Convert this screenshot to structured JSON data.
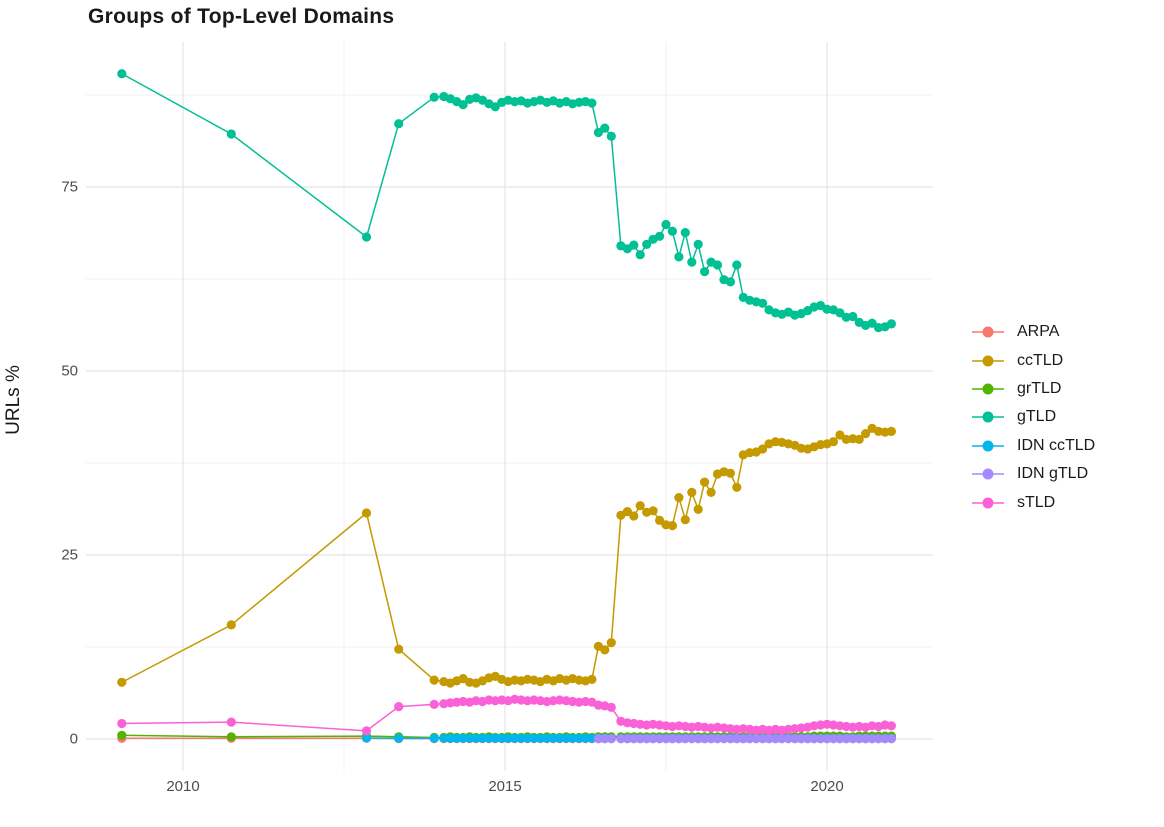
{
  "title": "Groups of Top-Level Domains",
  "axes": {
    "y": {
      "title": "URLs %",
      "tick_labels": [
        "0",
        "25",
        "50",
        "75"
      ]
    },
    "x": {
      "title": "",
      "tick_labels": [
        "2010",
        "2015",
        "2020"
      ]
    }
  },
  "legend": {
    "position": "right"
  },
  "chart_data": {
    "type": "line",
    "title": "Groups of Top-Level Domains",
    "xlabel": "",
    "ylabel": "URLs %",
    "xlim": [
      2008.45,
      2021.6
    ],
    "ylim": [
      -4.5,
      95
    ],
    "x_ticks": [
      2010,
      2015,
      2020
    ],
    "x_minor_ticks": [
      2012.5,
      2017.5
    ],
    "y_ticks": [
      0,
      25,
      50,
      75
    ],
    "y_minor_ticks": [
      12.5,
      37.5,
      62.5,
      87.5
    ],
    "grid": true,
    "legend_position": "right",
    "x": [
      2009.05,
      2010.75,
      2012.85,
      2013.35,
      2013.9,
      2014.05,
      2014.15,
      2014.25,
      2014.35,
      2014.45,
      2014.55,
      2014.65,
      2014.75,
      2014.85,
      2014.95,
      2015.05,
      2015.15,
      2015.25,
      2015.35,
      2015.45,
      2015.55,
      2015.65,
      2015.75,
      2015.85,
      2015.95,
      2016.05,
      2016.15,
      2016.25,
      2016.35,
      2016.45,
      2016.55,
      2016.65,
      2016.8,
      2016.9,
      2017.0,
      2017.1,
      2017.2,
      2017.3,
      2017.4,
      2017.5,
      2017.6,
      2017.7,
      2017.8,
      2017.9,
      2018.0,
      2018.1,
      2018.2,
      2018.3,
      2018.4,
      2018.5,
      2018.6,
      2018.7,
      2018.8,
      2018.9,
      2019.0,
      2019.1,
      2019.2,
      2019.3,
      2019.4,
      2019.5,
      2019.6,
      2019.7,
      2019.8,
      2019.9,
      2020.0,
      2020.1,
      2020.2,
      2020.3,
      2020.4,
      2020.5,
      2020.6,
      2020.7,
      2020.8,
      2020.9,
      2021.0
    ],
    "series": [
      {
        "name": "ARPA",
        "color": "#F8766D",
        "values": [
          0.1,
          0.1,
          0.1,
          0.05,
          0.05,
          0.05,
          0.05,
          0.05,
          0.05,
          0.05,
          0.05,
          0.05,
          0.05,
          0.05,
          0.05,
          0.05,
          0.05,
          0.05,
          0.05,
          0.05,
          0.05,
          0.05,
          0.05,
          0.05,
          0.05,
          0.05,
          0.05,
          0.05,
          0.05,
          0.05,
          0.05,
          0.05,
          0.05,
          0.05,
          0.05,
          0.05,
          0.05,
          0.05,
          0.05,
          0.05,
          0.05,
          0.05,
          0.05,
          0.05,
          0.05,
          0.05,
          0.05,
          0.05,
          0.05,
          0.05,
          0.05,
          0.05,
          0.05,
          0.05,
          0.05,
          0.05,
          0.05,
          0.05,
          0.05,
          0.05,
          0.05,
          0.05,
          0.05,
          0.05,
          0.05,
          0.05,
          0.05,
          0.05,
          0.05,
          0.05,
          0.05,
          0.05,
          0.05,
          0.05,
          0.05
        ]
      },
      {
        "name": "ccTLD",
        "color": "#C49A00",
        "values": [
          7.7,
          15.5,
          30.7,
          12.2,
          8.0,
          7.8,
          7.6,
          7.9,
          8.2,
          7.7,
          7.6,
          7.9,
          8.3,
          8.5,
          8.1,
          7.8,
          8.0,
          7.9,
          8.1,
          8.0,
          7.8,
          8.1,
          7.9,
          8.2,
          8.0,
          8.2,
          8.0,
          7.9,
          8.1,
          12.6,
          12.1,
          13.1,
          30.4,
          30.9,
          30.3,
          31.7,
          30.8,
          31.0,
          29.7,
          29.1,
          29.0,
          32.8,
          29.8,
          33.5,
          31.2,
          34.9,
          33.5,
          36.0,
          36.3,
          36.1,
          34.2,
          38.6,
          38.9,
          39.0,
          39.4,
          40.1,
          40.4,
          40.3,
          40.1,
          39.9,
          39.5,
          39.4,
          39.7,
          40.0,
          40.1,
          40.4,
          41.3,
          40.7,
          40.8,
          40.7,
          41.5,
          42.2,
          41.8,
          41.7,
          41.8
        ]
      },
      {
        "name": "grTLD",
        "color": "#53B400",
        "values": [
          0.5,
          0.3,
          0.4,
          0.3,
          0.2,
          0.2,
          0.3,
          0.2,
          0.2,
          0.3,
          0.2,
          0.2,
          0.3,
          0.2,
          0.2,
          0.3,
          0.2,
          0.2,
          0.3,
          0.2,
          0.2,
          0.3,
          0.2,
          0.2,
          0.3,
          0.2,
          0.2,
          0.3,
          0.2,
          0.3,
          0.3,
          0.3,
          0.3,
          0.3,
          0.3,
          0.3,
          0.3,
          0.3,
          0.3,
          0.3,
          0.3,
          0.3,
          0.3,
          0.3,
          0.3,
          0.3,
          0.3,
          0.3,
          0.3,
          0.3,
          0.3,
          0.3,
          0.3,
          0.3,
          0.3,
          0.3,
          0.3,
          0.3,
          0.3,
          0.3,
          0.3,
          0.3,
          0.4,
          0.4,
          0.4,
          0.4,
          0.4,
          0.3,
          0.3,
          0.4,
          0.4,
          0.4,
          0.4,
          0.4,
          0.4
        ]
      },
      {
        "name": "gTLD",
        "color": "#00C094",
        "values": [
          90.4,
          82.2,
          68.2,
          83.6,
          87.2,
          87.3,
          87.0,
          86.6,
          86.2,
          86.9,
          87.1,
          86.8,
          86.3,
          85.9,
          86.5,
          86.8,
          86.6,
          86.7,
          86.4,
          86.6,
          86.8,
          86.5,
          86.7,
          86.4,
          86.6,
          86.3,
          86.5,
          86.6,
          86.4,
          82.4,
          83.0,
          81.9,
          67.0,
          66.6,
          67.1,
          65.8,
          67.2,
          67.9,
          68.3,
          69.9,
          69.0,
          65.5,
          68.8,
          64.8,
          67.2,
          63.5,
          64.8,
          64.4,
          62.4,
          62.1,
          64.4,
          60.0,
          59.6,
          59.4,
          59.2,
          58.3,
          57.9,
          57.7,
          58.0,
          57.6,
          57.8,
          58.2,
          58.7,
          58.9,
          58.4,
          58.3,
          57.9,
          57.3,
          57.4,
          56.6,
          56.2,
          56.5,
          55.9,
          56.0,
          56.4
        ]
      },
      {
        "name": "IDN ccTLD",
        "color": "#00B6EB",
        "values": [
          null,
          null,
          0.15,
          0.1,
          0.1,
          0.1,
          0.1,
          0.1,
          0.1,
          0.1,
          0.1,
          0.1,
          0.1,
          0.1,
          0.1,
          0.1,
          0.1,
          0.1,
          0.1,
          0.1,
          0.1,
          0.1,
          0.1,
          0.1,
          0.1,
          0.1,
          0.1,
          0.1,
          0.1,
          0.1,
          0.1,
          0.1,
          0.1,
          0.1,
          0.1,
          0.1,
          0.1,
          0.1,
          0.1,
          0.1,
          0.1,
          0.1,
          0.1,
          0.1,
          0.1,
          0.1,
          0.1,
          0.1,
          0.1,
          0.1,
          0.1,
          0.1,
          0.1,
          0.1,
          0.1,
          0.1,
          0.1,
          0.1,
          0.1,
          0.1,
          0.1,
          0.1,
          0.1,
          0.1,
          0.1,
          0.1,
          0.1,
          0.1,
          0.1,
          0.1,
          0.1,
          0.1,
          0.1,
          0.1,
          0.1
        ]
      },
      {
        "name": "IDN gTLD",
        "color": "#A58AFF",
        "values": [
          null,
          null,
          null,
          null,
          null,
          null,
          null,
          null,
          null,
          null,
          null,
          null,
          null,
          null,
          null,
          null,
          null,
          null,
          null,
          null,
          null,
          null,
          null,
          null,
          null,
          null,
          null,
          null,
          null,
          0.05,
          0.05,
          0.05,
          0.05,
          0.05,
          0.05,
          0.05,
          0.05,
          0.05,
          0.05,
          0.05,
          0.05,
          0.05,
          0.05,
          0.05,
          0.05,
          0.05,
          0.05,
          0.05,
          0.05,
          0.05,
          0.05,
          0.05,
          0.05,
          0.05,
          0.05,
          0.05,
          0.05,
          0.05,
          0.05,
          0.05,
          0.05,
          0.05,
          0.05,
          0.05,
          0.05,
          0.05,
          0.05,
          0.05,
          0.05,
          0.05,
          0.05,
          0.05,
          0.05,
          0.05,
          0.05
        ]
      },
      {
        "name": "sTLD",
        "color": "#FB61D7",
        "values": [
          2.1,
          2.3,
          1.1,
          4.4,
          4.7,
          4.8,
          4.9,
          5.0,
          5.1,
          5.0,
          5.2,
          5.1,
          5.3,
          5.2,
          5.3,
          5.2,
          5.4,
          5.3,
          5.2,
          5.3,
          5.2,
          5.1,
          5.2,
          5.3,
          5.2,
          5.1,
          5.0,
          5.1,
          5.0,
          4.6,
          4.5,
          4.3,
          2.4,
          2.2,
          2.1,
          2.0,
          1.9,
          2.0,
          1.9,
          1.8,
          1.7,
          1.8,
          1.7,
          1.6,
          1.7,
          1.6,
          1.5,
          1.6,
          1.5,
          1.4,
          1.3,
          1.4,
          1.3,
          1.2,
          1.3,
          1.2,
          1.3,
          1.2,
          1.3,
          1.4,
          1.5,
          1.6,
          1.8,
          1.9,
          2.0,
          1.9,
          1.8,
          1.7,
          1.6,
          1.7,
          1.6,
          1.8,
          1.7,
          1.9,
          1.8
        ]
      }
    ]
  }
}
